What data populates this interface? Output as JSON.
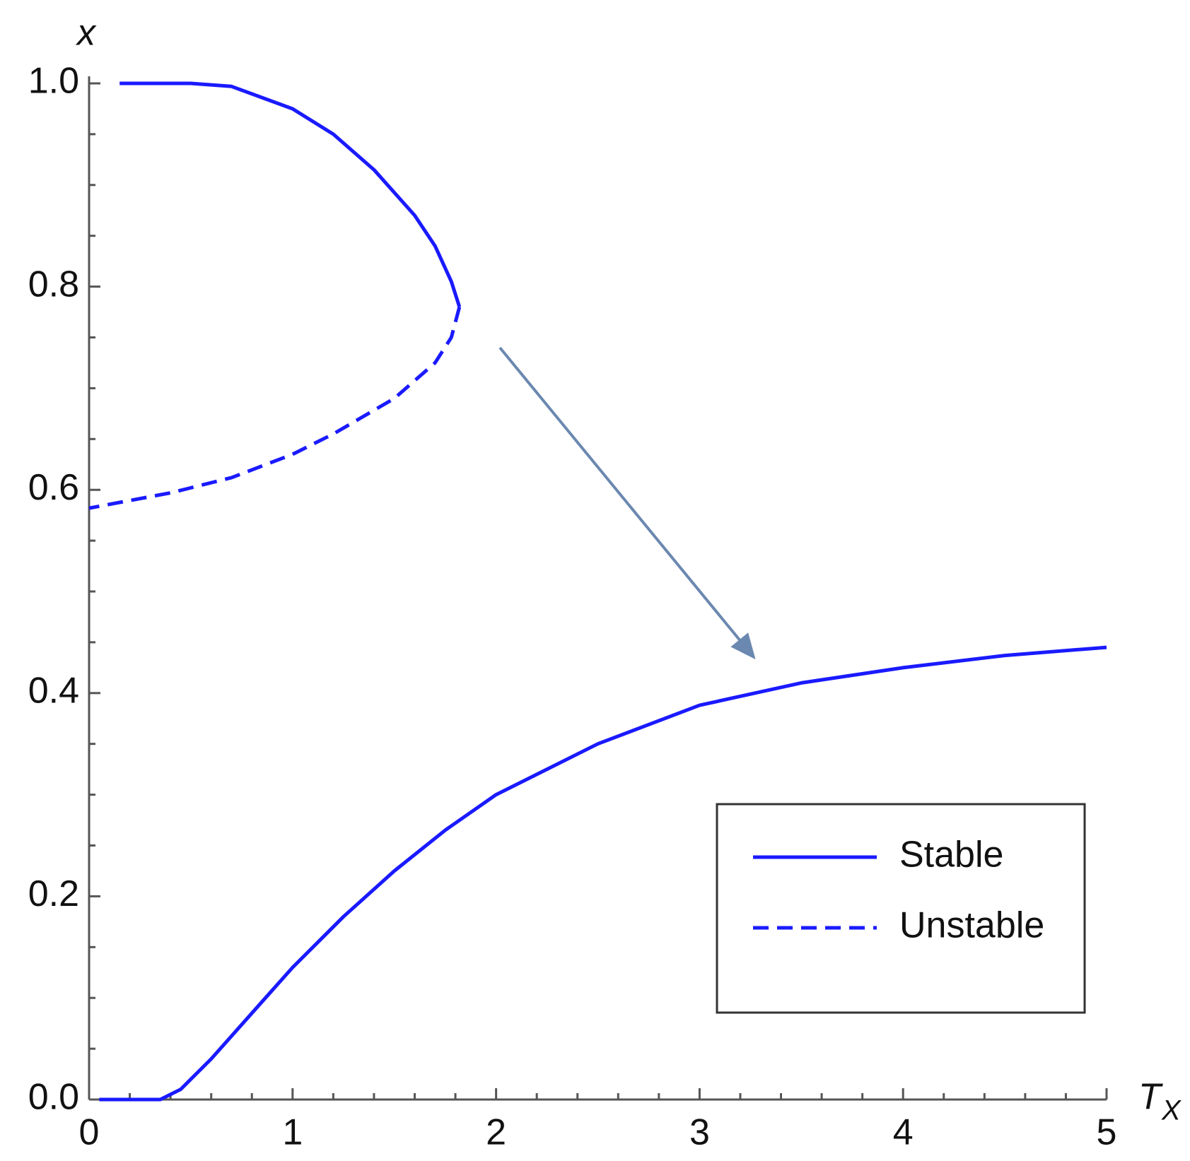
{
  "chart_data": {
    "type": "line",
    "y_label": "x",
    "x_label": "T",
    "x_label_subscript": "X",
    "xlim": [
      0,
      5
    ],
    "ylim": [
      0,
      1
    ],
    "xticks": [
      0,
      1,
      2,
      3,
      4,
      5
    ],
    "yticks": [
      {
        "value": 0,
        "label": "0.0"
      },
      0.2,
      0.4,
      0.6,
      0.8,
      {
        "value": 1,
        "label": "1.0"
      }
    ],
    "x_minor_ticks": [
      0.2,
      0.4,
      0.6,
      0.8,
      1.2,
      1.4,
      1.6,
      1.8,
      2.2,
      2.4,
      2.6,
      2.8,
      3.2,
      3.4,
      3.6,
      3.8,
      4.2,
      4.4,
      4.6,
      4.8
    ],
    "y_minor_ticks": [
      0.05,
      0.1,
      0.15,
      0.25,
      0.3,
      0.35,
      0.45,
      0.5,
      0.55,
      0.65,
      0.7,
      0.75,
      0.85,
      0.9,
      0.95
    ],
    "legend": "lower right",
    "series": [
      {
        "name": "Stable",
        "color": "#1a1aff",
        "dashed": false,
        "x": [
          0.15,
          0.5,
          0.7,
          1.0,
          1.2,
          1.4,
          1.6,
          1.7,
          1.78,
          1.82,
          null,
          0.05,
          0.35,
          0.45,
          0.6,
          0.8,
          1.0,
          1.25,
          1.5,
          1.75,
          2.0,
          2.5,
          3.0,
          3.5,
          4.0,
          4.5,
          5.0
        ],
        "values": [
          1.0,
          1.0,
          0.997,
          0.975,
          0.95,
          0.915,
          0.87,
          0.84,
          0.805,
          0.78,
          null,
          0,
          0,
          0.01,
          0.04,
          0.085,
          0.13,
          0.18,
          0.225,
          0.265,
          0.3,
          0.35,
          0.388,
          0.41,
          0.425,
          0.437,
          0.445
        ]
      },
      {
        "name": "Unstable",
        "color": "#1a1aff",
        "dashed": true,
        "x": [
          1.82,
          1.78,
          1.7,
          1.5,
          1.2,
          1.0,
          0.7,
          0.4,
          0
        ],
        "values": [
          0.78,
          0.75,
          0.725,
          0.69,
          0.655,
          0.635,
          0.612,
          0.597,
          0.582
        ]
      }
    ]
  }
}
